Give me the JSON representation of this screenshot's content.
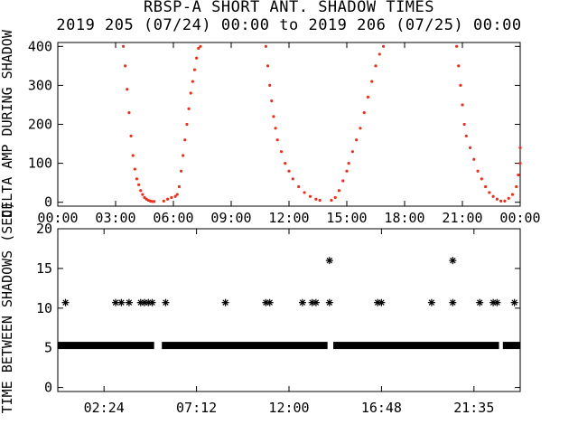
{
  "figure": {
    "title": "RBSP-A SHORT ANT. SHADOW TIMES",
    "subtitle": "2019 205 (07/24) 00:00 to 2019 206 (07/25) 00:00"
  },
  "colors": {
    "background": "#ffffff",
    "axes": "#000000",
    "points_top": "#e8321e",
    "points_bottom": "#000000"
  },
  "chart_data": [
    {
      "type": "scatter",
      "ylabel": "DELTA AMP DURING SHADOW",
      "x_unit": "hours",
      "xlim": [
        0,
        24
      ],
      "ylim": [
        -10,
        410
      ],
      "xticks": [
        0,
        3,
        6,
        9,
        12,
        15,
        18,
        21,
        24
      ],
      "xtick_labels": [
        "00:00",
        "03:00",
        "06:00",
        "09:00",
        "12:00",
        "15:00",
        "18:00",
        "21:00",
        "00:00"
      ],
      "yticks": [
        0,
        100,
        200,
        300,
        400
      ],
      "ytick_labels": [
        "0",
        "100",
        "200",
        "300",
        "400"
      ],
      "series": [
        {
          "marker": "dot",
          "color": "#e8321e",
          "points": [
            [
              3.4,
              400
            ],
            [
              3.5,
              350
            ],
            [
              3.6,
              290
            ],
            [
              3.7,
              230
            ],
            [
              3.8,
              170
            ],
            [
              3.9,
              120
            ],
            [
              4.0,
              85
            ],
            [
              4.1,
              60
            ],
            [
              4.2,
              45
            ],
            [
              4.3,
              30
            ],
            [
              4.4,
              20
            ],
            [
              4.5,
              12
            ],
            [
              4.6,
              8
            ],
            [
              4.7,
              5
            ],
            [
              4.8,
              3
            ],
            [
              4.9,
              2
            ],
            [
              5.0,
              2
            ],
            [
              5.5,
              3
            ],
            [
              5.7,
              8
            ],
            [
              5.9,
              12
            ],
            [
              6.1,
              15
            ],
            [
              6.2,
              20
            ],
            [
              6.3,
              40
            ],
            [
              6.4,
              80
            ],
            [
              6.5,
              120
            ],
            [
              6.6,
              160
            ],
            [
              6.7,
              200
            ],
            [
              6.8,
              240
            ],
            [
              6.9,
              280
            ],
            [
              7.0,
              310
            ],
            [
              7.1,
              340
            ],
            [
              7.2,
              370
            ],
            [
              7.3,
              395
            ],
            [
              7.4,
              400
            ],
            [
              10.8,
              400
            ],
            [
              10.9,
              350
            ],
            [
              11.0,
              300
            ],
            [
              11.1,
              260
            ],
            [
              11.2,
              220
            ],
            [
              11.3,
              190
            ],
            [
              11.4,
              160
            ],
            [
              11.6,
              130
            ],
            [
              11.8,
              100
            ],
            [
              12.0,
              80
            ],
            [
              12.2,
              60
            ],
            [
              12.5,
              40
            ],
            [
              12.8,
              25
            ],
            [
              13.1,
              15
            ],
            [
              13.4,
              8
            ],
            [
              13.6,
              5
            ],
            [
              14.2,
              5
            ],
            [
              14.4,
              12
            ],
            [
              14.6,
              30
            ],
            [
              14.8,
              55
            ],
            [
              15.0,
              80
            ],
            [
              15.1,
              100
            ],
            [
              15.3,
              130
            ],
            [
              15.5,
              160
            ],
            [
              15.7,
              190
            ],
            [
              15.9,
              230
            ],
            [
              16.1,
              270
            ],
            [
              16.3,
              310
            ],
            [
              16.5,
              350
            ],
            [
              16.7,
              380
            ],
            [
              16.9,
              400
            ],
            [
              20.7,
              400
            ],
            [
              20.8,
              350
            ],
            [
              20.9,
              300
            ],
            [
              21.0,
              250
            ],
            [
              21.1,
              200
            ],
            [
              21.2,
              170
            ],
            [
              21.4,
              140
            ],
            [
              21.6,
              110
            ],
            [
              21.8,
              80
            ],
            [
              22.0,
              60
            ],
            [
              22.2,
              40
            ],
            [
              22.4,
              25
            ],
            [
              22.6,
              15
            ],
            [
              22.8,
              8
            ],
            [
              23.0,
              3
            ],
            [
              23.2,
              3
            ],
            [
              23.4,
              10
            ],
            [
              23.6,
              20
            ],
            [
              23.8,
              40
            ],
            [
              23.9,
              70
            ],
            [
              24.0,
              100
            ],
            [
              24.0,
              140
            ]
          ]
        }
      ]
    },
    {
      "type": "scatter",
      "ylabel": "TIME BETWEEN SHADOWS (SEC)",
      "x_unit": "hours",
      "xlim": [
        0,
        24
      ],
      "ylim": [
        -0.5,
        20
      ],
      "xticks": [
        2.4,
        7.2,
        12,
        16.8,
        21.6
      ],
      "xtick_labels": [
        "02:24",
        "07:12",
        "12:00",
        "16:48",
        "21:35"
      ],
      "yticks": [
        0,
        5,
        10,
        15,
        20
      ],
      "ytick_labels": [
        "0",
        "5",
        "10",
        "15",
        "20"
      ],
      "baseline": {
        "y": 5.3,
        "x_start": 0.0,
        "x_end": 24.0,
        "gaps": [
          [
            5.0,
            5.4
          ],
          [
            14.0,
            14.3
          ],
          [
            22.9,
            23.1
          ]
        ]
      },
      "series": [
        {
          "marker": "asterisk",
          "color": "#000000",
          "points": [
            [
              0.4,
              10.7
            ],
            [
              3.0,
              10.7
            ],
            [
              3.3,
              10.7
            ],
            [
              3.7,
              10.7
            ],
            [
              4.3,
              10.7
            ],
            [
              4.5,
              10.7
            ],
            [
              4.7,
              10.7
            ],
            [
              4.9,
              10.7
            ],
            [
              5.6,
              10.7
            ],
            [
              8.7,
              10.7
            ],
            [
              10.8,
              10.7
            ],
            [
              11.0,
              10.7
            ],
            [
              12.7,
              10.7
            ],
            [
              13.2,
              10.7
            ],
            [
              13.4,
              10.7
            ],
            [
              14.1,
              10.7
            ],
            [
              14.1,
              16.0
            ],
            [
              16.6,
              10.7
            ],
            [
              16.8,
              10.7
            ],
            [
              19.4,
              10.7
            ],
            [
              20.5,
              10.7
            ],
            [
              20.5,
              16.0
            ],
            [
              21.9,
              10.7
            ],
            [
              22.6,
              10.7
            ],
            [
              22.8,
              10.7
            ],
            [
              23.7,
              10.7
            ]
          ]
        }
      ]
    }
  ]
}
